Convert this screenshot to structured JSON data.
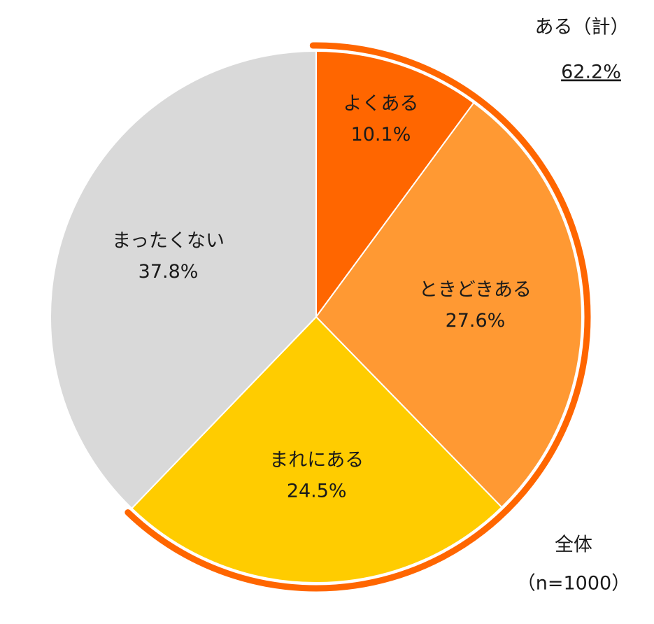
{
  "chart_data": {
    "type": "pie",
    "categories": [
      "よくある",
      "ときどきある",
      "まれにある",
      "まったくない"
    ],
    "values": [
      10.1,
      27.6,
      24.5,
      37.8
    ],
    "value_labels": [
      "10.1%",
      "27.6%",
      "24.5%",
      "37.8%"
    ],
    "colors": [
      "#ff6600",
      "#ff9933",
      "#ffcc00",
      "#d9d9d9"
    ],
    "total": {
      "label": "ある（計）",
      "value": 62.2,
      "value_label": "62.2%",
      "color": "#ff6600"
    },
    "note": [
      "全体",
      "（n=1000）"
    ]
  }
}
